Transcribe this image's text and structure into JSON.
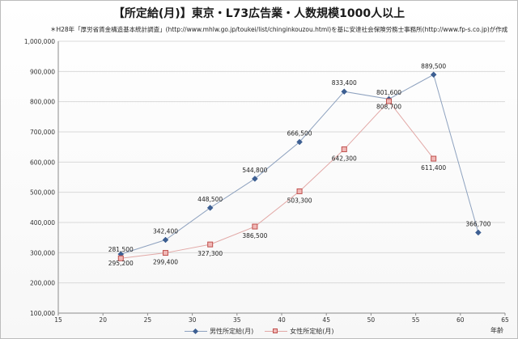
{
  "title": "【所定給(月)】東京・L73広告業・人数規模1000人以上",
  "subtitle": "＊H28年「厚労省賃金構造基本統計調査」(http://www.mhlw.go.jp/toukei/list/chinginkouzou.html)を基に安達社会保険労務士事務所(http://www.fp-s.co.jp)が作成",
  "colors": {
    "male_line": "#8ea2bf",
    "male_marker": "#3d5f92",
    "female_line": "#e2a8a6",
    "female_marker_fill": "#f0b8b6",
    "female_marker_stroke": "#c0504d",
    "grid": "#d9d9d9",
    "axis": "#8c8c8c"
  },
  "chart_data": {
    "type": "line",
    "xlabel": "年齢",
    "ylabel": "",
    "xlim": [
      15,
      65
    ],
    "ylim": [
      100000,
      1000000
    ],
    "xticks": [
      15,
      20,
      25,
      30,
      35,
      40,
      45,
      50,
      55,
      60,
      65
    ],
    "yticks": [
      100000,
      200000,
      300000,
      400000,
      500000,
      600000,
      700000,
      800000,
      900000,
      1000000
    ],
    "ytick_labels": [
      "100,000",
      "200,000",
      "300,000",
      "400,000",
      "500,000",
      "600,000",
      "700,000",
      "800,000",
      "900,000",
      "1,000,000"
    ],
    "grid": "horizontal",
    "legend_position": "bottom",
    "series": [
      {
        "name": "男性所定給(月)",
        "marker": "diamond",
        "x": [
          22,
          27,
          32,
          37,
          42,
          47,
          52,
          57,
          62
        ],
        "values": [
          295200,
          342400,
          448500,
          544800,
          666500,
          833400,
          808700,
          889500,
          366700
        ],
        "labels": [
          "295,200",
          "342,400",
          "448,500",
          "544,800",
          "666,500",
          "833,400",
          "808,700",
          "889,500",
          "366,700"
        ]
      },
      {
        "name": "女性所定給(月)",
        "marker": "square",
        "x": [
          22,
          27,
          32,
          37,
          42,
          47,
          52,
          57
        ],
        "values": [
          281500,
          299400,
          327300,
          386500,
          503300,
          642300,
          801600,
          611400
        ],
        "labels": [
          "281,500",
          "299,400",
          "327,300",
          "386,500",
          "503,300",
          "642,300",
          "801,600",
          "611,400"
        ]
      }
    ]
  }
}
